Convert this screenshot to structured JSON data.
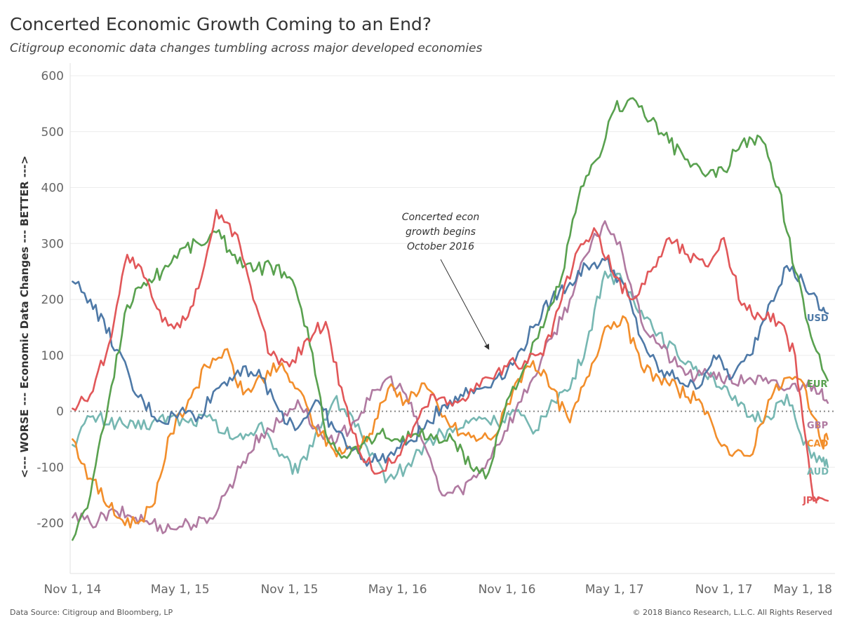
{
  "title": "Concerted Economic Growth Coming to an End?",
  "subtitle": "Citigroup economic data changes tumbling across major developed economies",
  "footer": {
    "source": "Data Source: Citigroup and Bloomberg, LP",
    "copyright": "© 2018 Bianco Research, L.L.C. All Rights Reserved"
  },
  "annotation": {
    "lines": [
      "Concerted econ",
      "growth begins",
      "October 2016"
    ],
    "point": {
      "x": "2016-10-01",
      "y": 112
    }
  },
  "chart_data": {
    "type": "line",
    "ylabel": "<--- WORSE --- Economic Data Changes --- BETTER --->",
    "ylim": [
      -290,
      610
    ],
    "xlim": [
      "2014-10-28",
      "2018-05-07"
    ],
    "y_ticks": [
      -200,
      -100,
      0,
      100,
      200,
      300,
      400,
      500,
      600
    ],
    "x_ticks": [
      {
        "date": "2014-11-01",
        "label": "Nov 1, 14"
      },
      {
        "date": "2015-05-01",
        "label": "May 1, 15"
      },
      {
        "date": "2015-11-01",
        "label": "Nov 1, 15"
      },
      {
        "date": "2016-05-01",
        "label": "May 1, 16"
      },
      {
        "date": "2016-11-01",
        "label": "Nov 1, 16"
      },
      {
        "date": "2017-05-01",
        "label": "May 1, 17"
      },
      {
        "date": "2017-11-01",
        "label": "Nov 1, 17"
      },
      {
        "date": "2018-05-01",
        "label": "May 1, 18"
      }
    ],
    "zero_line": "dotted",
    "grid": "horizontal",
    "series": [
      {
        "name": "USD",
        "color": "#4E79A7",
        "x": [
          "2014-11-01",
          "2014-12-01",
          "2015-01-15",
          "2015-02-15",
          "2015-04-01",
          "2015-05-01",
          "2015-06-01",
          "2015-07-01",
          "2015-08-15",
          "2015-09-15",
          "2015-10-15",
          "2015-11-15",
          "2015-12-15",
          "2016-01-15",
          "2016-02-15",
          "2016-03-15",
          "2016-04-15",
          "2016-05-15",
          "2016-06-15",
          "2016-07-15",
          "2016-08-15",
          "2016-09-15",
          "2016-10-15",
          "2016-11-15",
          "2016-12-15",
          "2017-01-15",
          "2017-02-15",
          "2017-03-15",
          "2017-04-15",
          "2017-05-15",
          "2017-06-15",
          "2017-07-15",
          "2017-08-15",
          "2017-09-15",
          "2017-10-15",
          "2017-11-15",
          "2017-12-15",
          "2018-01-15",
          "2018-02-15",
          "2018-03-15",
          "2018-04-15",
          "2018-04-25"
        ],
        "y": [
          232,
          200,
          110,
          30,
          -20,
          0,
          -10,
          40,
          80,
          60,
          0,
          -30,
          20,
          -30,
          -70,
          -90,
          -80,
          -60,
          -30,
          10,
          30,
          40,
          60,
          90,
          150,
          200,
          230,
          260,
          270,
          230,
          130,
          70,
          60,
          40,
          100,
          60,
          100,
          190,
          260,
          230,
          180,
          175
        ]
      },
      {
        "name": "EUR",
        "color": "#59A14F",
        "x": [
          "2014-11-01",
          "2014-12-01",
          "2015-01-01",
          "2015-02-01",
          "2015-03-01",
          "2015-04-01",
          "2015-05-01",
          "2015-06-01",
          "2015-07-01",
          "2015-08-01",
          "2015-09-01",
          "2015-10-01",
          "2015-11-01",
          "2015-12-01",
          "2016-01-01",
          "2016-02-01",
          "2016-03-01",
          "2016-04-01",
          "2016-05-01",
          "2016-06-01",
          "2016-07-01",
          "2016-08-01",
          "2016-09-01",
          "2016-10-01",
          "2016-11-01",
          "2016-12-01",
          "2017-01-01",
          "2017-02-01",
          "2017-03-01",
          "2017-04-01",
          "2017-05-01",
          "2017-06-01",
          "2017-07-01",
          "2017-08-01",
          "2017-09-01",
          "2017-10-01",
          "2017-11-01",
          "2017-12-01",
          "2018-01-01",
          "2018-02-01",
          "2018-03-01",
          "2018-04-01",
          "2018-04-25"
        ],
        "y": [
          -230,
          -150,
          20,
          190,
          230,
          250,
          290,
          300,
          320,
          280,
          250,
          260,
          240,
          150,
          -40,
          -80,
          -60,
          -40,
          -50,
          -40,
          -50,
          -50,
          -100,
          -110,
          20,
          80,
          150,
          240,
          380,
          450,
          540,
          560,
          520,
          480,
          450,
          420,
          430,
          480,
          490,
          400,
          250,
          120,
          55
        ]
      },
      {
        "name": "JPY",
        "color": "#E15759",
        "x": [
          "2014-11-01",
          "2014-12-01",
          "2015-01-01",
          "2015-02-01",
          "2015-03-01",
          "2015-04-01",
          "2015-05-01",
          "2015-06-01",
          "2015-07-01",
          "2015-08-01",
          "2015-09-01",
          "2015-10-01",
          "2015-11-01",
          "2015-12-01",
          "2016-01-01",
          "2016-02-01",
          "2016-03-01",
          "2016-04-01",
          "2016-05-01",
          "2016-06-01",
          "2016-07-01",
          "2016-08-01",
          "2016-09-01",
          "2016-10-01",
          "2016-11-01",
          "2016-12-01",
          "2017-01-01",
          "2017-02-01",
          "2017-03-01",
          "2017-04-01",
          "2017-05-01",
          "2017-06-01",
          "2017-07-01",
          "2017-08-01",
          "2017-09-01",
          "2017-10-01",
          "2017-11-01",
          "2017-12-01",
          "2018-01-01",
          "2018-02-01",
          "2018-03-01",
          "2018-04-01",
          "2018-04-25"
        ],
        "y": [
          5,
          30,
          120,
          280,
          240,
          160,
          150,
          220,
          360,
          320,
          200,
          100,
          80,
          130,
          160,
          20,
          -80,
          -110,
          -80,
          -20,
          30,
          10,
          40,
          60,
          80,
          90,
          100,
          200,
          290,
          320,
          240,
          200,
          250,
          310,
          280,
          260,
          310,
          190,
          170,
          160,
          100,
          -160,
          -160
        ]
      },
      {
        "name": "GBP",
        "color": "#B07AA1",
        "x": [
          "2014-11-01",
          "2014-12-01",
          "2015-01-15",
          "2015-02-15",
          "2015-03-15",
          "2015-04-15",
          "2015-05-15",
          "2015-06-15",
          "2015-07-15",
          "2015-08-15",
          "2015-09-15",
          "2015-10-15",
          "2015-11-15",
          "2015-12-15",
          "2016-01-15",
          "2016-02-15",
          "2016-03-15",
          "2016-04-15",
          "2016-05-15",
          "2016-06-15",
          "2016-07-15",
          "2016-08-15",
          "2016-09-15",
          "2016-10-15",
          "2016-11-15",
          "2016-12-15",
          "2017-01-15",
          "2017-02-15",
          "2017-03-15",
          "2017-04-15",
          "2017-05-15",
          "2017-06-15",
          "2017-07-15",
          "2017-08-15",
          "2017-09-15",
          "2017-10-15",
          "2017-11-15",
          "2017-12-15",
          "2018-01-15",
          "2018-02-15",
          "2018-03-15",
          "2018-04-15",
          "2018-04-25"
        ],
        "y": [
          -190,
          -200,
          -180,
          -190,
          -200,
          -210,
          -200,
          -200,
          -150,
          -90,
          -40,
          -20,
          20,
          -30,
          -60,
          -20,
          20,
          60,
          30,
          -60,
          -150,
          -140,
          -110,
          -60,
          0,
          60,
          130,
          200,
          280,
          340,
          280,
          160,
          120,
          80,
          60,
          70,
          50,
          60,
          50,
          40,
          50,
          40,
          15
        ]
      },
      {
        "name": "CAD",
        "color": "#F28E2B",
        "x": [
          "2014-11-01",
          "2014-12-01",
          "2015-01-15",
          "2015-02-15",
          "2015-03-15",
          "2015-04-15",
          "2015-05-15",
          "2015-06-15",
          "2015-07-15",
          "2015-08-15",
          "2015-09-15",
          "2015-10-15",
          "2015-11-15",
          "2015-12-15",
          "2016-01-15",
          "2016-02-15",
          "2016-03-15",
          "2016-04-15",
          "2016-05-15",
          "2016-06-15",
          "2016-07-15",
          "2016-08-15",
          "2016-09-15",
          "2016-10-15",
          "2016-11-15",
          "2016-12-15",
          "2017-01-15",
          "2017-02-15",
          "2017-03-15",
          "2017-04-15",
          "2017-05-15",
          "2017-06-15",
          "2017-07-15",
          "2017-08-15",
          "2017-09-15",
          "2017-10-15",
          "2017-11-15",
          "2017-12-15",
          "2018-01-15",
          "2018-02-15",
          "2018-03-15",
          "2018-04-15",
          "2018-04-25"
        ],
        "y": [
          -50,
          -120,
          -190,
          -200,
          -170,
          -40,
          20,
          80,
          110,
          30,
          60,
          80,
          40,
          -30,
          -70,
          -70,
          -40,
          40,
          20,
          50,
          -10,
          -40,
          -50,
          -40,
          50,
          90,
          40,
          -20,
          60,
          150,
          170,
          80,
          60,
          40,
          20,
          -30,
          -80,
          -80,
          20,
          60,
          50,
          -60,
          -50
        ]
      },
      {
        "name": "AUD",
        "color": "#76B7B2",
        "x": [
          "2014-11-01",
          "2014-12-01",
          "2015-01-15",
          "2015-02-15",
          "2015-03-15",
          "2015-04-15",
          "2015-05-15",
          "2015-06-15",
          "2015-07-15",
          "2015-08-15",
          "2015-09-15",
          "2015-10-15",
          "2015-11-15",
          "2015-12-15",
          "2016-01-15",
          "2016-02-15",
          "2016-03-15",
          "2016-04-15",
          "2016-05-15",
          "2016-06-15",
          "2016-07-15",
          "2016-08-15",
          "2016-09-15",
          "2016-10-15",
          "2016-11-15",
          "2016-12-15",
          "2017-01-15",
          "2017-02-15",
          "2017-03-15",
          "2017-04-15",
          "2017-05-15",
          "2017-06-15",
          "2017-07-15",
          "2017-08-15",
          "2017-09-15",
          "2017-10-15",
          "2017-11-15",
          "2017-12-15",
          "2018-01-15",
          "2018-02-15",
          "2018-03-15",
          "2018-04-15",
          "2018-04-25"
        ],
        "y": [
          -60,
          -10,
          -20,
          -30,
          -20,
          -10,
          -20,
          -10,
          -40,
          -50,
          -20,
          -80,
          -110,
          -40,
          20,
          -10,
          -80,
          -120,
          -100,
          -60,
          -40,
          -30,
          -10,
          -20,
          0,
          -40,
          20,
          40,
          120,
          250,
          230,
          180,
          140,
          100,
          80,
          60,
          20,
          -10,
          -10,
          30,
          -60,
          -90,
          -100
        ]
      }
    ]
  }
}
